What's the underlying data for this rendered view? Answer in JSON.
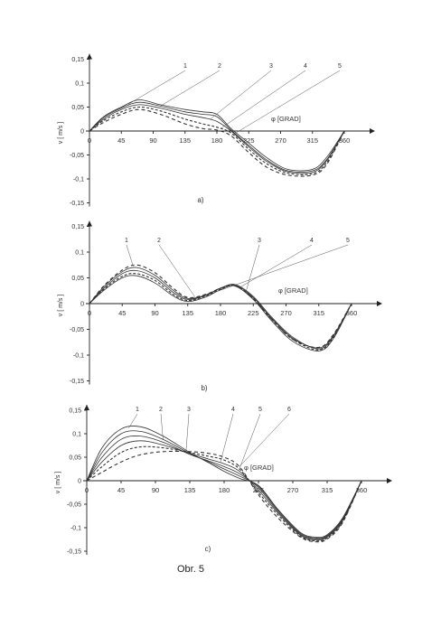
{
  "figure_label": "Obr. 5",
  "chart_data": [
    {
      "type": "line",
      "panel": "a)",
      "xlabel": "φ  [GRAD]",
      "ylabel": "v [ m/s ]",
      "xlim": [
        0,
        360
      ],
      "ylim": [
        -0.15,
        0.15
      ],
      "x_ticks": [
        "0",
        "45",
        "90",
        "135",
        "180",
        "225",
        "270",
        "315",
        "360"
      ],
      "y_ticks": [
        "0,15",
        "0,1",
        "0,05",
        "0",
        "-0,05",
        "-0,1",
        "-0,15"
      ],
      "curve_labels": [
        "1",
        "2",
        "3",
        "4",
        "5"
      ],
      "x": [
        0,
        20,
        45,
        70,
        100,
        135,
        160,
        180,
        200,
        225,
        250,
        280,
        315,
        335,
        360
      ],
      "series": [
        {
          "name": "1",
          "dash": "",
          "values": [
            0,
            0.03,
            0.05,
            0.065,
            0.055,
            0.045,
            0.04,
            0.035,
            0.005,
            -0.025,
            -0.055,
            -0.08,
            -0.08,
            -0.055,
            0
          ]
        },
        {
          "name": "2",
          "dash": "",
          "values": [
            0,
            0.028,
            0.048,
            0.06,
            0.052,
            0.04,
            0.035,
            0.03,
            0.002,
            -0.03,
            -0.06,
            -0.083,
            -0.083,
            -0.06,
            0
          ]
        },
        {
          "name": "3",
          "dash": "",
          "values": [
            0,
            0.025,
            0.045,
            0.055,
            0.048,
            0.035,
            0.028,
            0.02,
            0.0,
            -0.033,
            -0.063,
            -0.085,
            -0.086,
            -0.062,
            0
          ]
        },
        {
          "name": "4",
          "dash": "3,2",
          "values": [
            0,
            0.022,
            0.04,
            0.05,
            0.042,
            0.025,
            0.015,
            0.008,
            -0.004,
            -0.038,
            -0.068,
            -0.088,
            -0.089,
            -0.066,
            0
          ]
        },
        {
          "name": "5",
          "dash": "4,3",
          "values": [
            0,
            0.018,
            0.035,
            0.045,
            0.035,
            0.015,
            0.005,
            0.002,
            -0.01,
            -0.045,
            -0.075,
            -0.092,
            -0.092,
            -0.07,
            0
          ]
        }
      ]
    },
    {
      "type": "line",
      "panel": "b)",
      "xlabel": "φ  [GRAD]",
      "ylabel": "v [ m/s ]",
      "xlim": [
        0,
        360
      ],
      "ylim": [
        -0.15,
        0.15
      ],
      "x_ticks": [
        "0",
        "45",
        "90",
        "135",
        "180",
        "225",
        "270",
        "315",
        "360"
      ],
      "y_ticks": [
        "0,15",
        "0,1",
        "0,05",
        "0",
        "-0,05",
        "-0,1",
        "-0,15"
      ],
      "curve_labels": [
        "1",
        "2",
        "3",
        "4",
        "5"
      ],
      "x": [
        0,
        20,
        45,
        65,
        90,
        115,
        135,
        160,
        180,
        200,
        225,
        250,
        280,
        315,
        335,
        360
      ],
      "series": [
        {
          "name": "1",
          "dash": "4,3",
          "values": [
            0,
            0.035,
            0.065,
            0.075,
            0.06,
            0.03,
            0.012,
            0.018,
            0.03,
            0.035,
            0.01,
            -0.03,
            -0.07,
            -0.085,
            -0.06,
            0
          ]
        },
        {
          "name": "2",
          "dash": "",
          "values": [
            0,
            0.033,
            0.062,
            0.07,
            0.055,
            0.026,
            0.01,
            0.017,
            0.03,
            0.036,
            0.012,
            -0.028,
            -0.068,
            -0.086,
            -0.062,
            0
          ]
        },
        {
          "name": "3",
          "dash": "",
          "values": [
            0,
            0.03,
            0.058,
            0.064,
            0.05,
            0.022,
            0.008,
            0.016,
            0.03,
            0.037,
            0.014,
            -0.026,
            -0.066,
            -0.088,
            -0.064,
            0
          ]
        },
        {
          "name": "4",
          "dash": "3,2",
          "values": [
            0,
            0.028,
            0.053,
            0.058,
            0.045,
            0.018,
            0.006,
            0.015,
            0.028,
            0.035,
            0.01,
            -0.03,
            -0.07,
            -0.09,
            -0.066,
            0
          ]
        },
        {
          "name": "5",
          "dash": "",
          "values": [
            0,
            0.026,
            0.05,
            0.054,
            0.04,
            0.015,
            0.004,
            0.013,
            0.027,
            0.034,
            0.008,
            -0.033,
            -0.074,
            -0.092,
            -0.068,
            0
          ]
        }
      ]
    },
    {
      "type": "line",
      "panel": "c)",
      "xlabel": "φ  [GRAD]",
      "ylabel": "v [ m/s ]",
      "xlim": [
        0,
        360
      ],
      "ylim": [
        -0.15,
        0.15
      ],
      "x_ticks": [
        "0",
        "45",
        "90",
        "135",
        "180",
        "225",
        "270",
        "315",
        "360"
      ],
      "y_ticks": [
        "0,15",
        "0,1",
        "0,05",
        "0",
        "-0,05",
        "-0,1",
        "-0,15"
      ],
      "curve_labels": [
        "1",
        "2",
        "3",
        "4",
        "5",
        "6"
      ],
      "x": [
        0,
        20,
        45,
        70,
        100,
        135,
        160,
        180,
        200,
        225,
        250,
        280,
        300,
        315,
        335,
        360
      ],
      "series": [
        {
          "name": "1",
          "dash": "",
          "values": [
            0,
            0.07,
            0.11,
            0.115,
            0.095,
            0.06,
            0.038,
            0.02,
            0.005,
            -0.01,
            -0.06,
            -0.11,
            -0.12,
            -0.115,
            -0.08,
            0
          ]
        },
        {
          "name": "2",
          "dash": "",
          "values": [
            0,
            0.06,
            0.1,
            0.105,
            0.088,
            0.058,
            0.04,
            0.025,
            0.01,
            -0.012,
            -0.062,
            -0.112,
            -0.122,
            -0.117,
            -0.082,
            0
          ]
        },
        {
          "name": "3",
          "dash": "",
          "values": [
            0,
            0.05,
            0.088,
            0.095,
            0.082,
            0.056,
            0.042,
            0.03,
            0.015,
            -0.015,
            -0.065,
            -0.114,
            -0.124,
            -0.118,
            -0.084,
            0
          ]
        },
        {
          "name": "4",
          "dash": "",
          "values": [
            0,
            0.04,
            0.075,
            0.085,
            0.076,
            0.058,
            0.046,
            0.036,
            0.02,
            -0.02,
            -0.068,
            -0.116,
            -0.126,
            -0.12,
            -0.086,
            0
          ]
        },
        {
          "name": "5",
          "dash": "3,2",
          "values": [
            0,
            0.03,
            0.06,
            0.072,
            0.07,
            0.06,
            0.052,
            0.044,
            0.025,
            -0.025,
            -0.072,
            -0.118,
            -0.128,
            -0.122,
            -0.088,
            0
          ]
        },
        {
          "name": "6",
          "dash": "4,3",
          "values": [
            0,
            0.018,
            0.04,
            0.055,
            0.062,
            0.062,
            0.058,
            0.05,
            0.03,
            -0.03,
            -0.078,
            -0.12,
            -0.13,
            -0.124,
            -0.09,
            0
          ]
        }
      ]
    }
  ]
}
